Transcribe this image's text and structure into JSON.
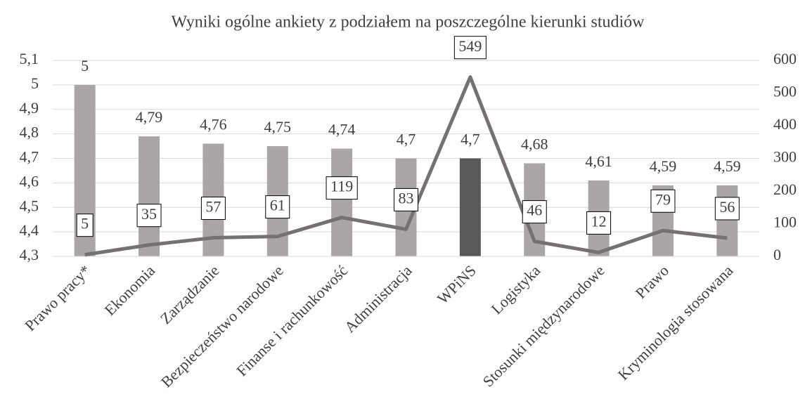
{
  "chart_data": {
    "type": "combo",
    "title": "Wyniki ogólne ankiety z podziałem na poszczególne kierunki studiów",
    "categories": [
      "Prawo pracy*",
      "Ekonomia",
      "Zarządzanie",
      "Bezpieczeństwo narodowe",
      "Finanse i rachunkowość",
      "Administracja",
      "WPiNS",
      "Logistyka",
      "Stosunki międzynarodowe",
      "Prawo",
      "Kryminologia stosowana"
    ],
    "series": [
      {
        "type": "bar",
        "values": [
          5,
          4.79,
          4.76,
          4.75,
          4.74,
          4.7,
          4.7,
          4.68,
          4.61,
          4.59,
          4.59
        ],
        "value_labels": [
          "5",
          "4,79",
          "4,76",
          "4,75",
          "4,74",
          "4,7",
          "4,7",
          "4,68",
          "4,61",
          "4,59",
          "4,59"
        ],
        "colors": [
          "#aaa6a6",
          "#aaa6a6",
          "#aaa6a6",
          "#aaa6a6",
          "#aaa6a6",
          "#aaa6a6",
          "#595959",
          "#aaa6a6",
          "#aaa6a6",
          "#aaa6a6",
          "#aaa6a6"
        ]
      },
      {
        "type": "line",
        "axis": "y2",
        "color": "#767171",
        "values": [
          5,
          35,
          57,
          61,
          119,
          83,
          549,
          46,
          12,
          79,
          56
        ]
      }
    ],
    "ylim": [
      4.3,
      5.1
    ],
    "yticks": [
      {
        "value": 4.3,
        "label": "4,3"
      },
      {
        "value": 4.4,
        "label": "4,4"
      },
      {
        "value": 4.5,
        "label": "4,5"
      },
      {
        "value": 4.6,
        "label": "4,6"
      },
      {
        "value": 4.7,
        "label": "4,7"
      },
      {
        "value": 4.8,
        "label": "4,8"
      },
      {
        "value": 4.9,
        "label": "4,9"
      },
      5,
      {
        "value": 5.1,
        "label": "5,1"
      }
    ],
    "y2lim": [
      0,
      600
    ],
    "y2ticks": [
      0,
      100,
      200,
      300,
      400,
      500,
      600
    ],
    "grid": true
  }
}
